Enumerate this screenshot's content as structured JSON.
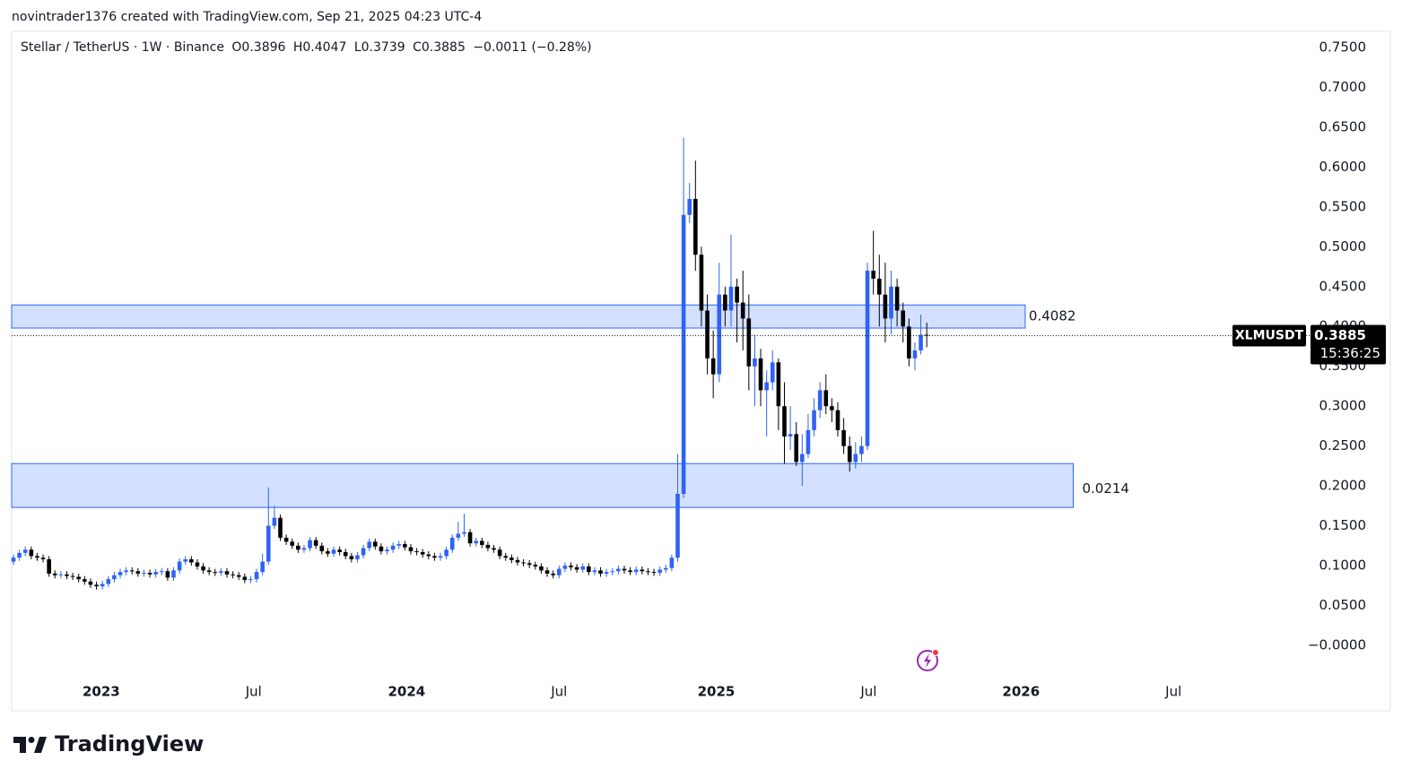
{
  "chart_data": {
    "type": "candlestick",
    "attribution": "novintrader1376 created with TradingView.com, Sep 21, 2025 04:23 UTC-4",
    "legend": {
      "symbol": "Stellar / TetherUS · 1W · Binance",
      "open": "O0.3896",
      "high": "H0.4047",
      "low": "L0.3739",
      "close": "C0.3885",
      "change": "−0.0011 (−0.28%)"
    },
    "ticker": "XLMUSDT",
    "last_price": 0.3885,
    "last_price_label": "0.3885",
    "countdown": "15:36:25",
    "brand": "TradingView",
    "up_color": "#2f62f5",
    "down_color": "#000000",
    "xlim": [
      -0.3,
      217.8
    ],
    "xticks": [
      {
        "value": 14.8,
        "label": "2023"
      },
      {
        "value": 40.5,
        "label": "Jul"
      },
      {
        "value": 66.3,
        "label": "2024"
      },
      {
        "value": 92.0,
        "label": "Jul"
      },
      {
        "value": 118.5,
        "label": "2025"
      },
      {
        "value": 144.2,
        "label": "Jul"
      },
      {
        "value": 169.9,
        "label": "2026"
      },
      {
        "value": 195.6,
        "label": "Jul"
      }
    ],
    "ylim": [
      -0.0416,
      0.7702
    ],
    "yticks": [
      {
        "value": 0.75,
        "label": "0.7500"
      },
      {
        "value": 0.7,
        "label": "0.7000"
      },
      {
        "value": 0.65,
        "label": "0.6500"
      },
      {
        "value": 0.6,
        "label": "0.6000"
      },
      {
        "value": 0.55,
        "label": "0.5500"
      },
      {
        "value": 0.5,
        "label": "0.5000"
      },
      {
        "value": 0.45,
        "label": "0.4500"
      },
      {
        "value": 0.4,
        "label": "0.4000"
      },
      {
        "value": 0.35,
        "label": "0.3500"
      },
      {
        "value": 0.3,
        "label": "0.3000"
      },
      {
        "value": 0.25,
        "label": "0.2500"
      },
      {
        "value": 0.2,
        "label": "0.2000"
      },
      {
        "value": 0.15,
        "label": "0.1500"
      },
      {
        "value": 0.1,
        "label": "0.1000"
      },
      {
        "value": 0.05,
        "label": "0.0500"
      },
      {
        "value": 0,
        "label": "−0.0000"
      }
    ],
    "zones": [
      {
        "top": 0.427,
        "bottom": 0.398,
        "x_end": 170.6,
        "label": "0.4082"
      },
      {
        "top": 0.228,
        "bottom": 0.173,
        "x_end": 178.7,
        "label": "0.0214"
      }
    ],
    "open": [
      0.105,
      0.11,
      0.116,
      0.12,
      0.112,
      0.11,
      0.108,
      0.09,
      0.088,
      0.089,
      0.087,
      0.086,
      0.083,
      0.08,
      0.076,
      0.074,
      0.077,
      0.083,
      0.088,
      0.092,
      0.094,
      0.093,
      0.09,
      0.091,
      0.089,
      0.092,
      0.093,
      0.085,
      0.094,
      0.105,
      0.108,
      0.104,
      0.099,
      0.094,
      0.092,
      0.091,
      0.093,
      0.089,
      0.088,
      0.086,
      0.082,
      0.083,
      0.092,
      0.105,
      0.15,
      0.16,
      0.135,
      0.13,
      0.125,
      0.12,
      0.122,
      0.132,
      0.125,
      0.118,
      0.115,
      0.12,
      0.117,
      0.112,
      0.108,
      0.113,
      0.122,
      0.13,
      0.124,
      0.118,
      0.12,
      0.125,
      0.127,
      0.123,
      0.118,
      0.117,
      0.114,
      0.112,
      0.11,
      0.112,
      0.12,
      0.135,
      0.14,
      0.142,
      0.128,
      0.131,
      0.126,
      0.122,
      0.12,
      0.112,
      0.11,
      0.107,
      0.104,
      0.103,
      0.101,
      0.099,
      0.094,
      0.09,
      0.088,
      0.096,
      0.1,
      0.098,
      0.095,
      0.099,
      0.092,
      0.094,
      0.09,
      0.092,
      0.093,
      0.096,
      0.094,
      0.092,
      0.095,
      0.093,
      0.092,
      0.091,
      0.095,
      0.097,
      0.11,
      0.19,
      0.54,
      0.56,
      0.49,
      0.42,
      0.36,
      0.34,
      0.44,
      0.42,
      0.45,
      0.43,
      0.41,
      0.35,
      0.36,
      0.32,
      0.33,
      0.355,
      0.3,
      0.262,
      0.265,
      0.23,
      0.24,
      0.27,
      0.295,
      0.32,
      0.3,
      0.295,
      0.27,
      0.25,
      0.23,
      0.24,
      0.25,
      0.47,
      0.46,
      0.44,
      0.41,
      0.45,
      0.42,
      0.4,
      0.36,
      0.37,
      0.3896
    ],
    "high": [
      0.114,
      0.12,
      0.124,
      0.124,
      0.116,
      0.114,
      0.112,
      0.094,
      0.093,
      0.093,
      0.091,
      0.09,
      0.087,
      0.084,
      0.08,
      0.081,
      0.087,
      0.092,
      0.096,
      0.098,
      0.098,
      0.097,
      0.095,
      0.095,
      0.096,
      0.097,
      0.097,
      0.098,
      0.109,
      0.112,
      0.112,
      0.108,
      0.103,
      0.098,
      0.096,
      0.097,
      0.097,
      0.093,
      0.092,
      0.09,
      0.087,
      0.096,
      0.115,
      0.198,
      0.175,
      0.164,
      0.139,
      0.134,
      0.129,
      0.126,
      0.136,
      0.136,
      0.129,
      0.122,
      0.124,
      0.124,
      0.121,
      0.116,
      0.117,
      0.126,
      0.134,
      0.134,
      0.128,
      0.124,
      0.129,
      0.131,
      0.131,
      0.127,
      0.122,
      0.121,
      0.118,
      0.116,
      0.116,
      0.124,
      0.139,
      0.155,
      0.165,
      0.146,
      0.135,
      0.135,
      0.13,
      0.126,
      0.124,
      0.116,
      0.114,
      0.111,
      0.108,
      0.107,
      0.105,
      0.103,
      0.098,
      0.094,
      0.1,
      0.104,
      0.104,
      0.102,
      0.103,
      0.103,
      0.098,
      0.098,
      0.096,
      0.097,
      0.1,
      0.1,
      0.098,
      0.099,
      0.099,
      0.097,
      0.096,
      0.099,
      0.101,
      0.114,
      0.24,
      0.637,
      0.58,
      0.608,
      0.5,
      0.44,
      0.395,
      0.48,
      0.45,
      0.515,
      0.46,
      0.47,
      0.44,
      0.39,
      0.372,
      0.345,
      0.37,
      0.36,
      0.33,
      0.3,
      0.28,
      0.265,
      0.29,
      0.31,
      0.33,
      0.34,
      0.31,
      0.305,
      0.285,
      0.262,
      0.255,
      0.262,
      0.48,
      0.52,
      0.49,
      0.48,
      0.47,
      0.46,
      0.43,
      0.41,
      0.38,
      0.415,
      0.4047
    ],
    "low": [
      0.101,
      0.106,
      0.112,
      0.108,
      0.106,
      0.104,
      0.086,
      0.084,
      0.084,
      0.083,
      0.082,
      0.079,
      0.076,
      0.072,
      0.07,
      0.07,
      0.073,
      0.079,
      0.084,
      0.088,
      0.089,
      0.086,
      0.086,
      0.085,
      0.085,
      0.088,
      0.081,
      0.081,
      0.09,
      0.101,
      0.1,
      0.095,
      0.09,
      0.088,
      0.087,
      0.087,
      0.085,
      0.084,
      0.082,
      0.078,
      0.078,
      0.079,
      0.088,
      0.101,
      0.146,
      0.131,
      0.126,
      0.121,
      0.116,
      0.116,
      0.118,
      0.121,
      0.114,
      0.111,
      0.111,
      0.113,
      0.108,
      0.104,
      0.104,
      0.109,
      0.118,
      0.12,
      0.114,
      0.114,
      0.116,
      0.121,
      0.119,
      0.114,
      0.113,
      0.11,
      0.108,
      0.106,
      0.106,
      0.108,
      0.116,
      0.131,
      0.136,
      0.124,
      0.124,
      0.122,
      0.118,
      0.116,
      0.108,
      0.106,
      0.103,
      0.1,
      0.099,
      0.097,
      0.095,
      0.09,
      0.086,
      0.084,
      0.084,
      0.092,
      0.094,
      0.091,
      0.091,
      0.088,
      0.088,
      0.086,
      0.086,
      0.088,
      0.089,
      0.09,
      0.088,
      0.088,
      0.089,
      0.088,
      0.087,
      0.087,
      0.091,
      0.093,
      0.105,
      0.185,
      0.53,
      0.47,
      0.4,
      0.34,
      0.31,
      0.33,
      0.4,
      0.4,
      0.38,
      0.37,
      0.32,
      0.3,
      0.3,
      0.262,
      0.32,
      0.27,
      0.228,
      0.245,
      0.225,
      0.2,
      0.235,
      0.262,
      0.285,
      0.29,
      0.28,
      0.262,
      0.24,
      0.218,
      0.222,
      0.23,
      0.245,
      0.44,
      0.4,
      0.38,
      0.39,
      0.4,
      0.38,
      0.35,
      0.345,
      0.365,
      0.3739
    ],
    "close": [
      0.11,
      0.116,
      0.12,
      0.112,
      0.11,
      0.108,
      0.09,
      0.088,
      0.089,
      0.087,
      0.086,
      0.083,
      0.08,
      0.076,
      0.074,
      0.077,
      0.083,
      0.088,
      0.092,
      0.094,
      0.093,
      0.09,
      0.091,
      0.089,
      0.092,
      0.093,
      0.085,
      0.094,
      0.105,
      0.108,
      0.104,
      0.099,
      0.094,
      0.092,
      0.091,
      0.093,
      0.089,
      0.088,
      0.086,
      0.082,
      0.083,
      0.092,
      0.105,
      0.15,
      0.16,
      0.135,
      0.13,
      0.125,
      0.12,
      0.122,
      0.132,
      0.125,
      0.118,
      0.115,
      0.12,
      0.117,
      0.112,
      0.108,
      0.113,
      0.122,
      0.13,
      0.124,
      0.118,
      0.12,
      0.125,
      0.127,
      0.123,
      0.118,
      0.117,
      0.114,
      0.112,
      0.11,
      0.112,
      0.12,
      0.135,
      0.14,
      0.142,
      0.128,
      0.131,
      0.126,
      0.122,
      0.12,
      0.112,
      0.11,
      0.107,
      0.104,
      0.103,
      0.101,
      0.099,
      0.094,
      0.09,
      0.088,
      0.096,
      0.1,
      0.098,
      0.095,
      0.099,
      0.092,
      0.094,
      0.09,
      0.092,
      0.093,
      0.096,
      0.094,
      0.092,
      0.095,
      0.093,
      0.092,
      0.091,
      0.095,
      0.097,
      0.11,
      0.19,
      0.54,
      0.56,
      0.49,
      0.42,
      0.36,
      0.34,
      0.44,
      0.42,
      0.45,
      0.43,
      0.41,
      0.35,
      0.36,
      0.32,
      0.33,
      0.355,
      0.3,
      0.262,
      0.265,
      0.23,
      0.24,
      0.27,
      0.295,
      0.32,
      0.3,
      0.295,
      0.27,
      0.25,
      0.23,
      0.24,
      0.25,
      0.47,
      0.46,
      0.44,
      0.41,
      0.45,
      0.42,
      0.4,
      0.36,
      0.37,
      0.3896,
      0.3885
    ]
  }
}
